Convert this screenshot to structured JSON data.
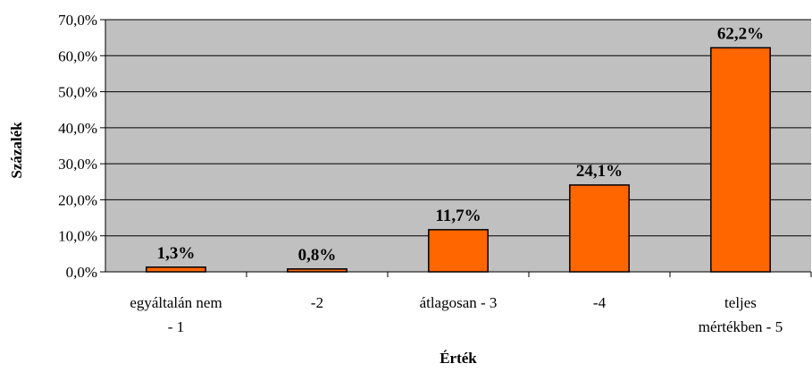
{
  "chart_data": {
    "type": "bar",
    "categories": [
      [
        "egyáltalán nem",
        "- 1"
      ],
      [
        "-2"
      ],
      [
        "átlagosan - 3"
      ],
      [
        "-4"
      ],
      [
        "teljes",
        "mértékben - 5"
      ]
    ],
    "values": [
      1.3,
      0.8,
      11.7,
      24.1,
      62.2
    ],
    "data_labels": [
      "1,3%",
      "0,8%",
      "11,7%",
      "24,1%",
      "62,2%"
    ],
    "y_ticks": [
      0,
      10,
      20,
      30,
      40,
      50,
      60,
      70
    ],
    "y_tick_labels": [
      "0,0%",
      "10,0%",
      "20,0%",
      "30,0%",
      "40,0%",
      "50,0%",
      "60,0%",
      "70,0%"
    ],
    "ylim": [
      0,
      70
    ],
    "xlabel": "Érték",
    "ylabel": "Százalék",
    "title": "",
    "grid": true,
    "legend": "none",
    "colors": {
      "bar_fill": "#FF6600",
      "bar_stroke": "#000000",
      "plot_background": "#C0C0C0",
      "gridline": "#000000"
    }
  }
}
